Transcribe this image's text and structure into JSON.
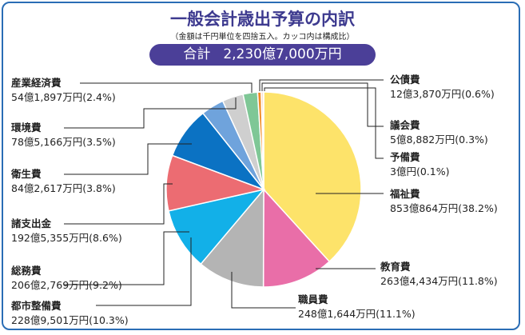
{
  "header": {
    "title": "一般会計歳出予算の内訳",
    "subtitle": "（金額は千円単位を四捨五入。カッコ内は構成比）",
    "total_label": "合計",
    "total_value": "2,230億7,000万円"
  },
  "chart_data": {
    "type": "pie",
    "title": "一般会計歳出予算の内訳",
    "unit": "%",
    "slices": [
      {
        "name": "福祉費",
        "amount": "853億864万円",
        "value": 38.2,
        "color": "#fde36a"
      },
      {
        "name": "教育費",
        "amount": "263億4,434万円",
        "value": 11.8,
        "color": "#e96ea8"
      },
      {
        "name": "職員費",
        "amount": "248億1,644万円",
        "value": 11.1,
        "color": "#b4b4b4"
      },
      {
        "name": "都市整備費",
        "amount": "228億9,501万円",
        "value": 10.3,
        "color": "#12b0e8"
      },
      {
        "name": "総務費",
        "amount": "206億2,769万円",
        "value": 9.2,
        "color": "#ec6c72"
      },
      {
        "name": "諸支出金",
        "amount": "192億5,355万円",
        "value": 8.6,
        "color": "#0b72c3"
      },
      {
        "name": "衛生費",
        "amount": "84億2,617万円",
        "value": 3.8,
        "color": "#6fa3dc"
      },
      {
        "name": "環境費",
        "amount": "78億5,166万円",
        "value": 3.5,
        "color": "#cfcfcf"
      },
      {
        "name": "産業経済費",
        "amount": "54億1,897万円",
        "value": 2.4,
        "color": "#7fc796"
      },
      {
        "name": "公債費",
        "amount": "12億3,870万円",
        "value": 0.6,
        "color": "#f08a24"
      },
      {
        "name": "議会費",
        "amount": "5億8,882万円",
        "value": 0.3,
        "color": "#f6c1a0"
      },
      {
        "name": "予備費",
        "amount": "3億円",
        "value": 0.1,
        "color": "#9bd3c8"
      }
    ]
  }
}
